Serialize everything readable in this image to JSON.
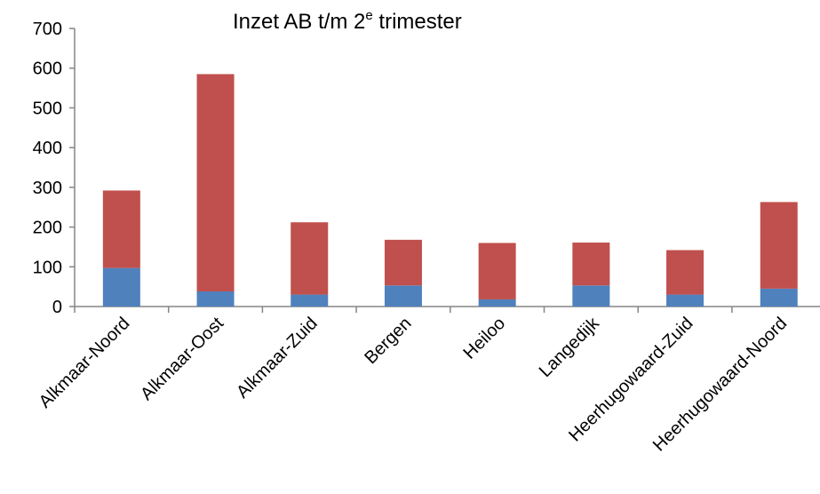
{
  "chart_data": {
    "type": "bar",
    "stacked": true,
    "title_main": "Inzet AB t/m 2",
    "title_sup": "e",
    "title_rest": " trimester",
    "categories": [
      "Alkmaar-Noord",
      "Alkmaar-Oost",
      "Alkmaar-Zuid",
      "Bergen",
      "Heiloo",
      "Langedijk",
      "Heerhugowaard-Zuid",
      "Heerhugowaard-Noord"
    ],
    "series": [
      {
        "color": "#4F81BD",
        "values": [
          97,
          38,
          30,
          53,
          18,
          53,
          30,
          45
        ]
      },
      {
        "color": "#C0504D",
        "values": [
          195,
          547,
          182,
          115,
          142,
          108,
          112,
          218
        ]
      }
    ],
    "ylim": [
      0,
      700
    ],
    "yticks": [
      "0",
      "100",
      "200",
      "300",
      "400",
      "500",
      "600",
      "700"
    ],
    "grid": false,
    "legend": "none"
  }
}
